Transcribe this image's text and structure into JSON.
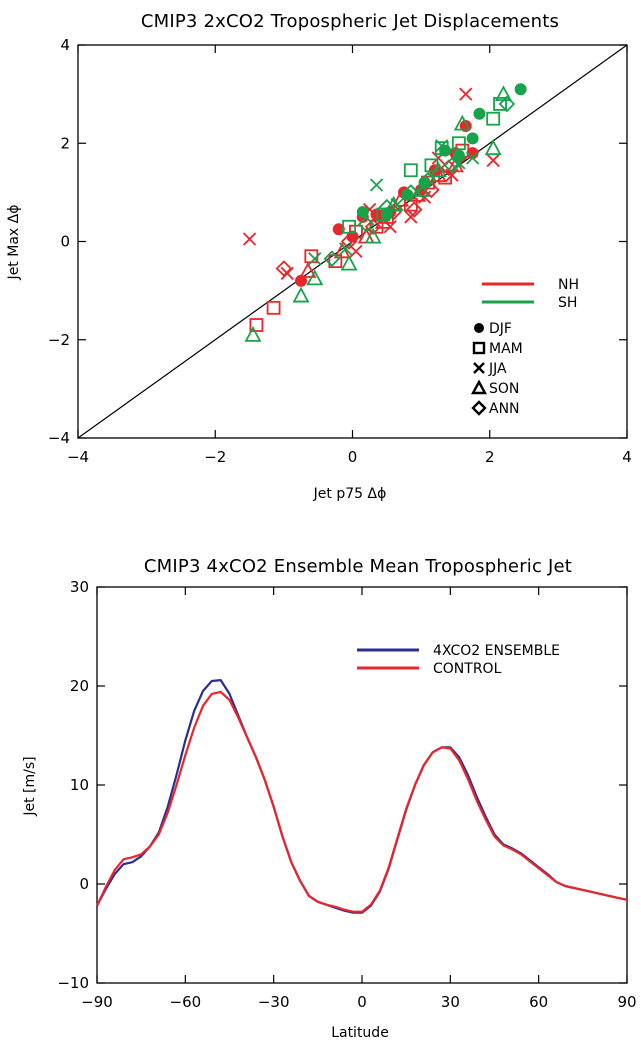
{
  "chart_data": [
    {
      "type": "scatter",
      "title": "CMIP3 2xCO2 Tropospheric Jet Displacements",
      "xlabel": "Jet p75 Δϕ",
      "ylabel": "Jet Max Δϕ",
      "xlim": [
        -4,
        4
      ],
      "ylim": [
        -4,
        4
      ],
      "xticks": [
        -4,
        -2,
        0,
        2,
        4
      ],
      "yticks": [
        -4,
        -2,
        0,
        2,
        4
      ],
      "reference_line": "1:1",
      "legend": {
        "position": "bottom-right",
        "lines": [
          {
            "label": "NH",
            "color": "#e8262b"
          },
          {
            "label": "SH",
            "color": "#16a34a"
          }
        ],
        "markers": [
          {
            "label": "DJF",
            "marker": "circle"
          },
          {
            "label": "MAM",
            "marker": "square"
          },
          {
            "label": "JJA",
            "marker": "x"
          },
          {
            "label": "SON",
            "marker": "triangle"
          },
          {
            "label": "ANN",
            "marker": "diamond"
          }
        ]
      },
      "series": [
        {
          "hemisphere": "NH",
          "season": "DJF",
          "color": "#e8262b",
          "marker": "circle",
          "points": [
            [
              -0.75,
              -0.8
            ],
            [
              -0.2,
              0.25
            ],
            [
              0.0,
              0.1
            ],
            [
              0.15,
              0.5
            ],
            [
              0.35,
              0.55
            ],
            [
              0.55,
              0.6
            ],
            [
              0.75,
              1.0
            ],
            [
              1.0,
              1.05
            ],
            [
              1.2,
              1.45
            ],
            [
              1.5,
              1.8
            ],
            [
              1.65,
              2.35
            ],
            [
              1.75,
              1.8
            ]
          ]
        },
        {
          "hemisphere": "NH",
          "season": "MAM",
          "color": "#e8262b",
          "marker": "square",
          "points": [
            [
              -1.4,
              -1.7
            ],
            [
              -1.15,
              -1.35
            ],
            [
              -0.6,
              -0.3
            ],
            [
              -0.25,
              -0.4
            ],
            [
              0.05,
              0.2
            ],
            [
              0.35,
              0.3
            ],
            [
              0.5,
              0.5
            ],
            [
              0.85,
              0.75
            ],
            [
              1.1,
              1.2
            ],
            [
              1.35,
              1.3
            ],
            [
              1.6,
              1.85
            ]
          ]
        },
        {
          "hemisphere": "NH",
          "season": "JJA",
          "color": "#e8262b",
          "marker": "x",
          "points": [
            [
              -1.5,
              0.05
            ],
            [
              -0.95,
              -0.65
            ],
            [
              0.05,
              -0.2
            ],
            [
              0.25,
              0.65
            ],
            [
              0.55,
              0.3
            ],
            [
              0.85,
              0.5
            ],
            [
              1.05,
              0.9
            ],
            [
              1.25,
              1.7
            ],
            [
              1.45,
              1.35
            ],
            [
              1.65,
              3.0
            ],
            [
              2.05,
              1.65
            ]
          ]
        },
        {
          "hemisphere": "NH",
          "season": "SON",
          "color": "#e8262b",
          "marker": "triangle",
          "points": [
            [
              -0.65,
              -0.6
            ],
            [
              -0.15,
              -0.2
            ],
            [
              0.2,
              0.1
            ],
            [
              0.45,
              0.4
            ],
            [
              0.7,
              0.85
            ],
            [
              0.95,
              0.95
            ],
            [
              1.25,
              1.35
            ],
            [
              1.5,
              1.55
            ]
          ]
        },
        {
          "hemisphere": "NH",
          "season": "ANN",
          "color": "#e8262b",
          "marker": "diamond",
          "points": [
            [
              -1.0,
              -0.55
            ],
            [
              -0.05,
              0.0
            ],
            [
              0.3,
              0.3
            ],
            [
              0.6,
              0.6
            ],
            [
              0.9,
              0.65
            ],
            [
              1.15,
              1.05
            ],
            [
              1.4,
              1.5
            ],
            [
              1.55,
              1.7
            ]
          ]
        },
        {
          "hemisphere": "SH",
          "season": "DJF",
          "color": "#16a34a",
          "marker": "circle",
          "points": [
            [
              0.15,
              0.6
            ],
            [
              0.5,
              0.55
            ],
            [
              0.8,
              0.95
            ],
            [
              1.05,
              1.2
            ],
            [
              1.35,
              1.85
            ],
            [
              1.55,
              1.75
            ],
            [
              1.75,
              2.1
            ],
            [
              1.85,
              2.6
            ],
            [
              2.45,
              3.1
            ]
          ]
        },
        {
          "hemisphere": "SH",
          "season": "MAM",
          "color": "#16a34a",
          "marker": "square",
          "points": [
            [
              -0.05,
              0.3
            ],
            [
              0.45,
              0.55
            ],
            [
              0.85,
              1.45
            ],
            [
              1.15,
              1.55
            ],
            [
              1.3,
              1.9
            ],
            [
              1.55,
              2.0
            ],
            [
              2.05,
              2.5
            ],
            [
              2.15,
              2.8
            ]
          ]
        },
        {
          "hemisphere": "SH",
          "season": "JJA",
          "color": "#16a34a",
          "marker": "x",
          "points": [
            [
              -0.55,
              -0.35
            ],
            [
              -0.1,
              -0.15
            ],
            [
              0.35,
              1.15
            ],
            [
              0.65,
              0.75
            ],
            [
              0.95,
              1.0
            ],
            [
              1.3,
              1.95
            ],
            [
              1.55,
              1.6
            ],
            [
              1.75,
              1.7
            ]
          ]
        },
        {
          "hemisphere": "SH",
          "season": "SON",
          "color": "#16a34a",
          "marker": "triangle",
          "points": [
            [
              -1.45,
              -1.9
            ],
            [
              -0.75,
              -1.1
            ],
            [
              -0.55,
              -0.75
            ],
            [
              -0.05,
              -0.45
            ],
            [
              0.3,
              0.1
            ],
            [
              0.6,
              0.75
            ],
            [
              1.0,
              1.05
            ],
            [
              1.25,
              1.45
            ],
            [
              1.6,
              2.4
            ],
            [
              2.05,
              1.9
            ],
            [
              2.2,
              3.0
            ]
          ]
        },
        {
          "hemisphere": "SH",
          "season": "ANN",
          "color": "#16a34a",
          "marker": "diamond",
          "points": [
            [
              -0.3,
              -0.35
            ],
            [
              0.2,
              0.35
            ],
            [
              0.5,
              0.7
            ],
            [
              0.85,
              1.0
            ],
            [
              1.1,
              1.25
            ],
            [
              1.45,
              1.55
            ],
            [
              2.25,
              2.8
            ]
          ]
        }
      ]
    },
    {
      "type": "line",
      "title": "CMIP3 4xCO2 Ensemble Mean Tropospheric Jet",
      "xlabel": "Latitude",
      "ylabel": "Jet [m/s]",
      "xlim": [
        -90,
        90
      ],
      "ylim": [
        -10,
        30
      ],
      "xticks": [
        -90,
        -60,
        -30,
        0,
        30,
        60,
        90
      ],
      "yticks": [
        -10,
        0,
        10,
        20,
        30
      ],
      "legend": {
        "position": "top-right"
      },
      "series": [
        {
          "name": "4XCO2 ENSEMBLE",
          "color": "#2b2f8f",
          "x": [
            -90,
            -87,
            -84,
            -81,
            -78,
            -75,
            -72,
            -69,
            -66,
            -63,
            -60,
            -57,
            -54,
            -51,
            -48,
            -45,
            -42,
            -39,
            -36,
            -33,
            -30,
            -27,
            -24,
            -21,
            -18,
            -15,
            -12,
            -9,
            -6,
            -3,
            0,
            3,
            6,
            9,
            12,
            15,
            18,
            21,
            24,
            27,
            30,
            33,
            36,
            39,
            42,
            45,
            48,
            51,
            54,
            57,
            60,
            63,
            66,
            69,
            72,
            75,
            78,
            81,
            84,
            87,
            90
          ],
          "y": [
            -2.2,
            -0.5,
            1.0,
            2.0,
            2.2,
            2.8,
            3.8,
            5.2,
            7.8,
            11.0,
            14.5,
            17.5,
            19.5,
            20.5,
            20.6,
            19.2,
            17.0,
            14.8,
            12.8,
            10.5,
            7.8,
            4.8,
            2.2,
            0.3,
            -1.2,
            -1.8,
            -2.1,
            -2.4,
            -2.7,
            -2.9,
            -2.9,
            -2.2,
            -0.8,
            1.5,
            4.5,
            7.5,
            10.0,
            12.0,
            13.3,
            13.8,
            13.8,
            12.8,
            11.0,
            8.8,
            6.8,
            5.0,
            4.0,
            3.6,
            3.1,
            2.4,
            1.7,
            1.0,
            0.2,
            -0.2,
            -0.4,
            -0.6,
            -0.8,
            -1.0,
            -1.2,
            -1.4,
            -1.6
          ]
        },
        {
          "name": "CONTROL",
          "color": "#e8262b",
          "x": [
            -90,
            -87,
            -84,
            -81,
            -78,
            -75,
            -72,
            -69,
            -66,
            -63,
            -60,
            -57,
            -54,
            -51,
            -48,
            -45,
            -42,
            -39,
            -36,
            -33,
            -30,
            -27,
            -24,
            -21,
            -18,
            -15,
            -12,
            -9,
            -6,
            -3,
            0,
            3,
            6,
            9,
            12,
            15,
            18,
            21,
            24,
            27,
            30,
            33,
            36,
            39,
            42,
            45,
            48,
            51,
            54,
            57,
            60,
            63,
            66,
            69,
            72,
            75,
            78,
            81,
            84,
            87,
            90
          ],
          "y": [
            -2.2,
            -0.3,
            1.4,
            2.5,
            2.7,
            3.0,
            3.8,
            5.0,
            7.2,
            10.0,
            13.0,
            15.8,
            18.0,
            19.2,
            19.4,
            18.6,
            16.8,
            14.8,
            12.8,
            10.5,
            7.8,
            4.8,
            2.2,
            0.3,
            -1.2,
            -1.8,
            -2.1,
            -2.3,
            -2.6,
            -2.8,
            -2.8,
            -2.1,
            -0.7,
            1.6,
            4.6,
            7.6,
            10.0,
            12.0,
            13.3,
            13.8,
            13.7,
            12.5,
            10.6,
            8.4,
            6.5,
            4.8,
            3.9,
            3.5,
            3.0,
            2.3,
            1.6,
            0.9,
            0.2,
            -0.2,
            -0.4,
            -0.6,
            -0.8,
            -1.0,
            -1.2,
            -1.4,
            -1.6
          ]
        }
      ]
    }
  ]
}
